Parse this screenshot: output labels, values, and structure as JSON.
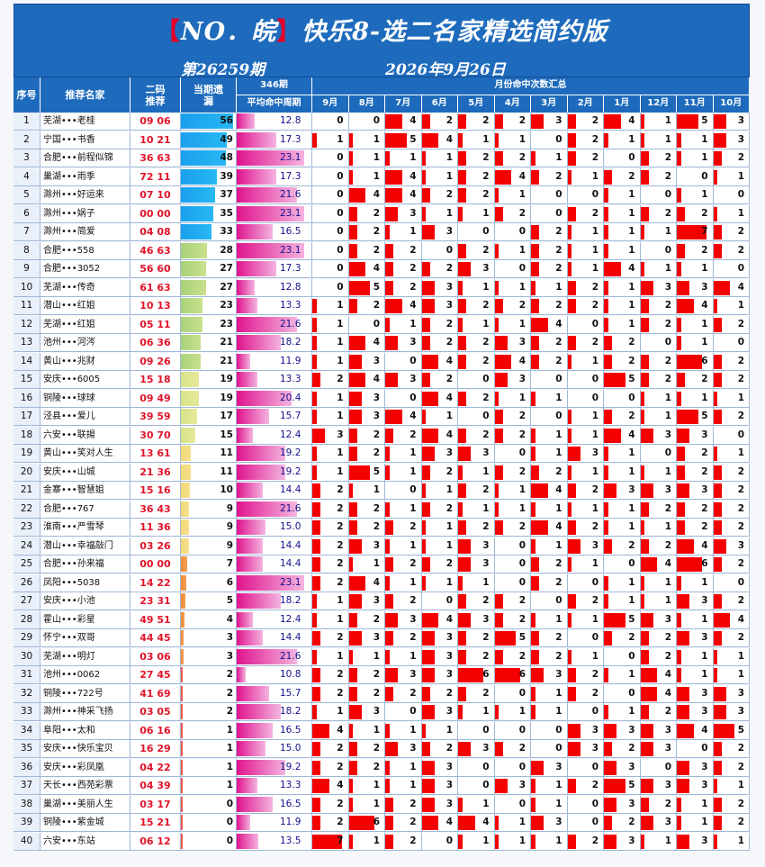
{
  "header": {
    "title_open": "【",
    "title_no": "NO．皖",
    "title_close": "】",
    "title_main": "快乐8-选二名家精选简约版",
    "issue": "第26259期",
    "date": "2026年9月26日"
  },
  "columns": {
    "index": "序号",
    "name": "推荐名家",
    "pick": "二码推荐",
    "miss": "当期遗漏",
    "periods": "346期",
    "avg": "平均命中周期",
    "month_summary": "月份命中次数汇总",
    "months": [
      "9月",
      "8月",
      "7月",
      "6月",
      "5月",
      "4月",
      "3月",
      "2月",
      "1月",
      "12月",
      "11月",
      "10月"
    ]
  },
  "rows": [
    {
      "i": "1",
      "name": "芜湖•••老桂",
      "pick": "09 06",
      "miss": 56,
      "avg": "12.8",
      "m": [
        0,
        0,
        4,
        2,
        2,
        2,
        3,
        2,
        4,
        1,
        5,
        3
      ]
    },
    {
      "i": "2",
      "name": "宁国•••书香",
      "pick": "10 21",
      "miss": 49,
      "avg": "17.3",
      "m": [
        1,
        1,
        5,
        4,
        1,
        1,
        0,
        2,
        1,
        1,
        1,
        3
      ]
    },
    {
      "i": "3",
      "name": "合肥•••前程似锦",
      "pick": "36 63",
      "miss": 48,
      "avg": "23.1",
      "m": [
        0,
        1,
        1,
        1,
        2,
        2,
        1,
        2,
        0,
        2,
        1,
        2
      ]
    },
    {
      "i": "4",
      "name": "巢湖•••雨季",
      "pick": "72 11",
      "miss": 39,
      "avg": "17.3",
      "m": [
        0,
        1,
        4,
        1,
        2,
        4,
        2,
        1,
        2,
        2,
        0,
        1
      ]
    },
    {
      "i": "5",
      "name": "滁州•••好运来",
      "pick": "07 10",
      "miss": 37,
      "avg": "21.6",
      "m": [
        0,
        4,
        4,
        2,
        2,
        1,
        0,
        0,
        1,
        0,
        1,
        0
      ]
    },
    {
      "i": "6",
      "name": "滁州•••娲子",
      "pick": "00 00",
      "miss": 35,
      "avg": "23.1",
      "m": [
        0,
        2,
        3,
        1,
        1,
        2,
        0,
        2,
        1,
        2,
        2,
        1
      ]
    },
    {
      "i": "7",
      "name": "滁州•••简爱",
      "pick": "04 08",
      "miss": 33,
      "avg": "16.5",
      "m": [
        0,
        2,
        1,
        3,
        0,
        0,
        2,
        1,
        1,
        1,
        7,
        2
      ]
    },
    {
      "i": "8",
      "name": "合肥•••558",
      "pick": "46 63",
      "miss": 28,
      "avg": "23.1",
      "m": [
        0,
        2,
        2,
        0,
        2,
        1,
        2,
        1,
        1,
        0,
        2,
        2
      ]
    },
    {
      "i": "9",
      "name": "合肥•••3052",
      "pick": "56 60",
      "miss": 27,
      "avg": "17.3",
      "m": [
        0,
        4,
        2,
        2,
        3,
        0,
        2,
        1,
        4,
        1,
        1,
        0
      ]
    },
    {
      "i": "10",
      "name": "芜湖•••传奇",
      "pick": "61 63",
      "miss": 27,
      "avg": "12.8",
      "m": [
        0,
        5,
        2,
        3,
        1,
        1,
        1,
        2,
        1,
        3,
        3,
        4
      ]
    },
    {
      "i": "11",
      "name": "潜山•••红姐",
      "pick": "10 13",
      "miss": 23,
      "avg": "13.3",
      "m": [
        1,
        2,
        4,
        3,
        2,
        2,
        2,
        2,
        1,
        2,
        4,
        1
      ]
    },
    {
      "i": "12",
      "name": "芜湖•••红姐",
      "pick": "05 11",
      "miss": 23,
      "avg": "21.6",
      "m": [
        1,
        0,
        1,
        2,
        1,
        1,
        4,
        0,
        1,
        2,
        1,
        2
      ]
    },
    {
      "i": "13",
      "name": "池州•••河涔",
      "pick": "06 36",
      "miss": 21,
      "avg": "18.2",
      "m": [
        1,
        4,
        3,
        2,
        2,
        3,
        2,
        2,
        2,
        0,
        1,
        0
      ]
    },
    {
      "i": "14",
      "name": "黄山•••兆财",
      "pick": "09 26",
      "miss": 21,
      "avg": "11.9",
      "m": [
        1,
        3,
        0,
        4,
        2,
        4,
        2,
        1,
        2,
        2,
        6,
        2
      ]
    },
    {
      "i": "15",
      "name": "安庆•••6005",
      "pick": "15 18",
      "miss": 19,
      "avg": "13.3",
      "m": [
        2,
        4,
        3,
        2,
        0,
        3,
        0,
        0,
        5,
        2,
        2,
        2
      ]
    },
    {
      "i": "16",
      "name": "铜陵•••球球",
      "pick": "09 49",
      "miss": 19,
      "avg": "20.4",
      "m": [
        1,
        3,
        0,
        4,
        2,
        1,
        1,
        0,
        0,
        1,
        1,
        1
      ]
    },
    {
      "i": "17",
      "name": "泾县•••爱儿",
      "pick": "39 59",
      "miss": 17,
      "avg": "15.7",
      "m": [
        1,
        3,
        4,
        1,
        0,
        2,
        0,
        1,
        2,
        1,
        5,
        2
      ]
    },
    {
      "i": "18",
      "name": "六安•••联揚",
      "pick": "30 70",
      "miss": 15,
      "avg": "12.4",
      "m": [
        3,
        2,
        2,
        4,
        2,
        2,
        1,
        1,
        4,
        3,
        3,
        0
      ]
    },
    {
      "i": "19",
      "name": "黄山•••笑对人生",
      "pick": "13 61",
      "miss": 11,
      "avg": "19.2",
      "m": [
        1,
        2,
        1,
        3,
        3,
        0,
        1,
        3,
        1,
        0,
        2,
        1
      ]
    },
    {
      "i": "20",
      "name": "安庆•••山城",
      "pick": "21 36",
      "miss": 11,
      "avg": "19.2",
      "m": [
        1,
        5,
        1,
        2,
        1,
        2,
        2,
        1,
        1,
        1,
        2,
        2
      ]
    },
    {
      "i": "21",
      "name": "金寨•••智慧姐",
      "pick": "15 16",
      "miss": 10,
      "avg": "14.4",
      "m": [
        2,
        1,
        0,
        1,
        2,
        1,
        4,
        2,
        3,
        3,
        3,
        2
      ]
    },
    {
      "i": "22",
      "name": "合肥•••767",
      "pick": "36 43",
      "miss": 9,
      "avg": "21.6",
      "m": [
        2,
        2,
        1,
        2,
        1,
        1,
        1,
        1,
        1,
        2,
        2,
        2
      ]
    },
    {
      "i": "23",
      "name": "淮南•••严雪琴",
      "pick": "11 36",
      "miss": 9,
      "avg": "15.0",
      "m": [
        2,
        2,
        2,
        1,
        2,
        2,
        4,
        2,
        1,
        1,
        2,
        2
      ]
    },
    {
      "i": "24",
      "name": "潜山•••幸福敲门",
      "pick": "03 26",
      "miss": 9,
      "avg": "14.4",
      "m": [
        2,
        3,
        1,
        1,
        3,
        0,
        1,
        3,
        2,
        2,
        4,
        3
      ]
    },
    {
      "i": "25",
      "name": "合肥•••孙来福",
      "pick": "00 00",
      "miss": 7,
      "avg": "14.4",
      "m": [
        2,
        1,
        2,
        2,
        3,
        0,
        2,
        1,
        0,
        4,
        6,
        2
      ]
    },
    {
      "i": "26",
      "name": "凤阳•••5038",
      "pick": "14 22",
      "miss": 6,
      "avg": "23.1",
      "m": [
        2,
        4,
        1,
        1,
        1,
        0,
        2,
        0,
        1,
        1,
        1,
        0
      ]
    },
    {
      "i": "27",
      "name": "安庆•••小池",
      "pick": "23 31",
      "miss": 5,
      "avg": "18.2",
      "m": [
        1,
        3,
        2,
        0,
        2,
        2,
        0,
        2,
        1,
        1,
        3,
        2
      ]
    },
    {
      "i": "28",
      "name": "霍山•••彩星",
      "pick": "49 51",
      "miss": 4,
      "avg": "12.4",
      "m": [
        1,
        2,
        3,
        4,
        3,
        2,
        1,
        1,
        5,
        3,
        1,
        4
      ]
    },
    {
      "i": "29",
      "name": "怀宁•••双哥",
      "pick": "44 45",
      "miss": 3,
      "avg": "14.4",
      "m": [
        2,
        3,
        2,
        3,
        2,
        5,
        2,
        0,
        2,
        2,
        3,
        2
      ]
    },
    {
      "i": "30",
      "name": "芜湖•••明灯",
      "pick": "03 06",
      "miss": 3,
      "avg": "21.6",
      "m": [
        1,
        1,
        1,
        3,
        2,
        2,
        2,
        1,
        0,
        2,
        1,
        1
      ]
    },
    {
      "i": "31",
      "name": "池州•••0062",
      "pick": "27 45",
      "miss": 2,
      "avg": "10.8",
      "m": [
        2,
        2,
        3,
        3,
        6,
        6,
        3,
        2,
        1,
        4,
        1,
        1
      ]
    },
    {
      "i": "32",
      "name": "铜陵•••722号",
      "pick": "41 69",
      "miss": 2,
      "avg": "15.7",
      "m": [
        2,
        2,
        2,
        2,
        2,
        0,
        1,
        2,
        0,
        4,
        3,
        3
      ]
    },
    {
      "i": "33",
      "name": "滁州•••神采飞扬",
      "pick": "03 05",
      "miss": 2,
      "avg": "18.2",
      "m": [
        1,
        3,
        0,
        3,
        1,
        1,
        1,
        0,
        1,
        2,
        3,
        3
      ]
    },
    {
      "i": "34",
      "name": "阜阳•••太和",
      "pick": "06 16",
      "miss": 1,
      "avg": "16.5",
      "m": [
        4,
        1,
        1,
        1,
        0,
        0,
        0,
        3,
        3,
        3,
        4,
        5
      ]
    },
    {
      "i": "35",
      "name": "安庆•••快乐宝贝",
      "pick": "16 29",
      "miss": 1,
      "avg": "15.0",
      "m": [
        2,
        2,
        3,
        2,
        3,
        2,
        0,
        3,
        2,
        3,
        0,
        2
      ]
    },
    {
      "i": "36",
      "name": "安庆•••彩凤凰",
      "pick": "04 22",
      "miss": 1,
      "avg": "19.2",
      "m": [
        2,
        2,
        1,
        3,
        0,
        0,
        3,
        0,
        3,
        0,
        3,
        2
      ]
    },
    {
      "i": "37",
      "name": "天长•••西苑彩票",
      "pick": "04 39",
      "miss": 1,
      "avg": "13.3",
      "m": [
        4,
        1,
        1,
        3,
        0,
        3,
        1,
        2,
        5,
        3,
        3,
        1
      ]
    },
    {
      "i": "38",
      "name": "巢湖•••美丽人生",
      "pick": "03 17",
      "miss": 0,
      "avg": "16.5",
      "m": [
        2,
        1,
        2,
        3,
        1,
        0,
        1,
        0,
        3,
        2,
        1,
        2
      ]
    },
    {
      "i": "39",
      "name": "铜陵•••紫金城",
      "pick": "15 21",
      "miss": 0,
      "avg": "11.9",
      "m": [
        2,
        6,
        2,
        4,
        4,
        1,
        3,
        0,
        2,
        3,
        1,
        2
      ]
    },
    {
      "i": "40",
      "name": "六安•••东站",
      "pick": "06 12",
      "miss": 0,
      "avg": "13.5",
      "m": [
        7,
        1,
        2,
        0,
        1,
        1,
        1,
        2,
        3,
        1,
        3,
        1
      ]
    }
  ]
}
